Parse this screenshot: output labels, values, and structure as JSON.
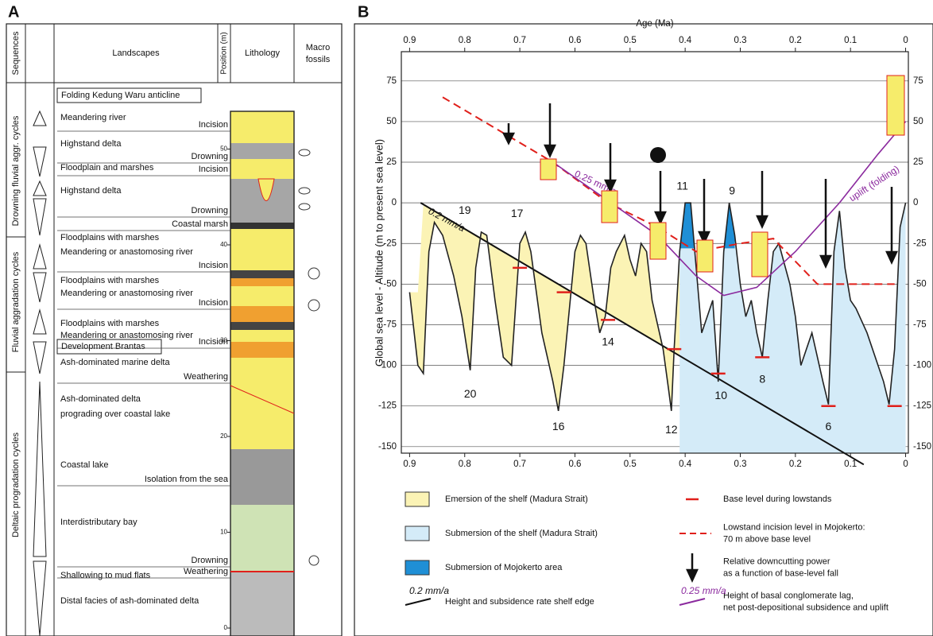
{
  "panel_a": {
    "label": "A",
    "headers": {
      "sequences": "Sequences",
      "landscapes": "Landscapes",
      "position": "Position (m)",
      "lithology": "Lithology",
      "macro_fossils": [
        "Macro",
        "fossils"
      ]
    },
    "sequences": [
      "Drowning fluvial aggr. cycles",
      "Fluvial aggradation cycles",
      "Deltaic progradation cycles"
    ],
    "boxed": [
      "Folding Kedung Waru anticline",
      "Development Brantas"
    ],
    "landscapes": [
      "Meandering river",
      "Highstand delta",
      "Floodplain and marshes",
      "Highstand delta",
      "Floodplains with marshes",
      "Meandering or anastomosing river",
      "Floodplains with marshes",
      "Meandering or anastomosing river",
      "Floodplains with marshes",
      "Meandering or anastomosing river",
      "Ash-dominated marine delta",
      "Ash-dominated delta",
      "prograding over coastal lake",
      "Coastal lake",
      "Interdistributary bay",
      "Shallowing to mud flats",
      "Distal facies of ash-dominated delta"
    ],
    "events": [
      "Incision",
      "Drowning",
      "Incision",
      "Drowning",
      "Coastal marsh",
      "Incision",
      "Incision",
      "Incision",
      "Weathering",
      "Isolation from the sea",
      "Drowning",
      "Weathering"
    ],
    "position_ticks": [
      0,
      10,
      20,
      30,
      40,
      50
    ]
  },
  "chart_data": {
    "type": "line",
    "label": "B",
    "x_title": "Age (Ma)",
    "y_title": "Global sea level - Altitude (m to present sea level)",
    "xlim": [
      0.915,
      -0.005
    ],
    "xticks": [
      0.9,
      0.8,
      0.7,
      0.6,
      0.5,
      0.4,
      0.3,
      0.2,
      0.1,
      0
    ],
    "ylim": [
      -154,
      93
    ],
    "yticks": [
      75,
      50,
      25,
      0,
      -25,
      -50,
      -75,
      -100,
      -125,
      -150
    ],
    "grid": true,
    "sea_level": {
      "color": "#222222",
      "x": [
        0.9,
        0.885,
        0.875,
        0.865,
        0.855,
        0.84,
        0.82,
        0.805,
        0.79,
        0.78,
        0.77,
        0.76,
        0.745,
        0.73,
        0.715,
        0.7,
        0.69,
        0.68,
        0.66,
        0.64,
        0.63,
        0.62,
        0.6,
        0.59,
        0.58,
        0.565,
        0.555,
        0.545,
        0.535,
        0.525,
        0.51,
        0.5,
        0.49,
        0.48,
        0.47,
        0.46,
        0.45,
        0.44,
        0.43,
        0.425,
        0.42,
        0.41,
        0.4,
        0.39,
        0.38,
        0.37,
        0.35,
        0.34,
        0.33,
        0.32,
        0.31,
        0.3,
        0.29,
        0.28,
        0.27,
        0.26,
        0.25,
        0.24,
        0.23,
        0.21,
        0.2,
        0.19,
        0.17,
        0.15,
        0.14,
        0.13,
        0.12,
        0.11,
        0.1,
        0.09,
        0.07,
        0.05,
        0.04,
        0.03,
        0.02,
        0.01,
        0
      ],
      "values": [
        -55,
        -100,
        -105,
        -30,
        -12,
        -20,
        -45,
        -70,
        -103,
        -40,
        -18,
        -20,
        -60,
        -95,
        -100,
        -25,
        -18,
        -30,
        -80,
        -110,
        -128,
        -100,
        -30,
        -20,
        -25,
        -60,
        -80,
        -70,
        -40,
        -30,
        -20,
        -35,
        -45,
        -25,
        -30,
        -60,
        -75,
        -90,
        -115,
        -128,
        -90,
        -30,
        0,
        0,
        -40,
        -80,
        -60,
        -110,
        -30,
        0,
        -20,
        -50,
        -70,
        -60,
        -80,
        -95,
        -60,
        -30,
        -25,
        -50,
        -70,
        -100,
        -80,
        -110,
        -124,
        -30,
        -5,
        -40,
        -60,
        -65,
        -80,
        -100,
        -110,
        -124,
        -90,
        -15,
        0
      ]
    },
    "shelf_edge": {
      "label": "0.2 mm/a",
      "color": "#111111",
      "x": [
        0.88,
        0.076
      ],
      "values": [
        0,
        -161
      ]
    },
    "base_levels": {
      "color": "#e0201b",
      "x": [
        0.7,
        0.62,
        0.54,
        0.42,
        0.34,
        0.26,
        0.14,
        0.02
      ],
      "values": [
        -40,
        -55,
        -72,
        -90,
        -105,
        -95,
        -125,
        -125
      ]
    },
    "incision_level": {
      "color": "#e0201b",
      "x": [
        0.84,
        0.64,
        0.54,
        0.45,
        0.38,
        0.3,
        0.24,
        0.16,
        0.02
      ],
      "values": [
        65,
        25,
        0,
        -15,
        -30,
        -25,
        -22,
        -50,
        -50
      ]
    },
    "conglomerate": {
      "color": "#8b2a9e",
      "label": "0.25 mm/a",
      "uplift_label": "uplift (folding)",
      "x": [
        0.64,
        0.45,
        0.38,
        0.33,
        0.27,
        0.2,
        0.12,
        0.05,
        0
      ],
      "values": [
        25,
        -20,
        -45,
        -57,
        -52,
        -30,
        0,
        30,
        50
      ]
    },
    "cycles": [
      {
        "text": "20",
        "x": 0.79,
        "y": -118
      },
      {
        "text": "19",
        "x": 0.8,
        "y": -5
      },
      {
        "text": "17",
        "x": 0.705,
        "y": -7
      },
      {
        "text": "16",
        "x": 0.63,
        "y": -138
      },
      {
        "text": "14",
        "x": 0.54,
        "y": -86
      },
      {
        "text": "12",
        "x": 0.425,
        "y": -140
      },
      {
        "text": "11",
        "x": 0.405,
        "y": 10
      },
      {
        "text": "10",
        "x": 0.335,
        "y": -119
      },
      {
        "text": "9",
        "x": 0.315,
        "y": 7
      },
      {
        "text": "8",
        "x": 0.26,
        "y": -109
      },
      {
        "text": "6",
        "x": 0.14,
        "y": -138
      }
    ],
    "legend": [
      {
        "label": [
          "Emersion of the shelf (Madura Strait)"
        ],
        "color": "#fbf3b5"
      },
      {
        "label": [
          "Submersion of the shelf (Madura Strait)"
        ],
        "color": "#d4ebf8"
      },
      {
        "label": [
          "Submersion of Mojokerto area"
        ],
        "color": "#1f8fd6"
      },
      {
        "label": [
          "Height and subsidence rate shelf edge"
        ],
        "color": "#111111"
      },
      {
        "label": [
          "Base level during lowstands"
        ],
        "color": "#e0201b"
      },
      {
        "label": [
          "Lowstand incision level in Mojokerto:",
          "70 m above base level"
        ],
        "color": "#e0201b"
      },
      {
        "label": [
          "Relative downcutting power",
          "as a function of base-level fall"
        ],
        "color": "#111111"
      },
      {
        "label": [
          "Height of basal conglomerate lag,",
          "net post-depositional subsidence and uplift"
        ],
        "color": "#8b2a9e"
      }
    ]
  }
}
